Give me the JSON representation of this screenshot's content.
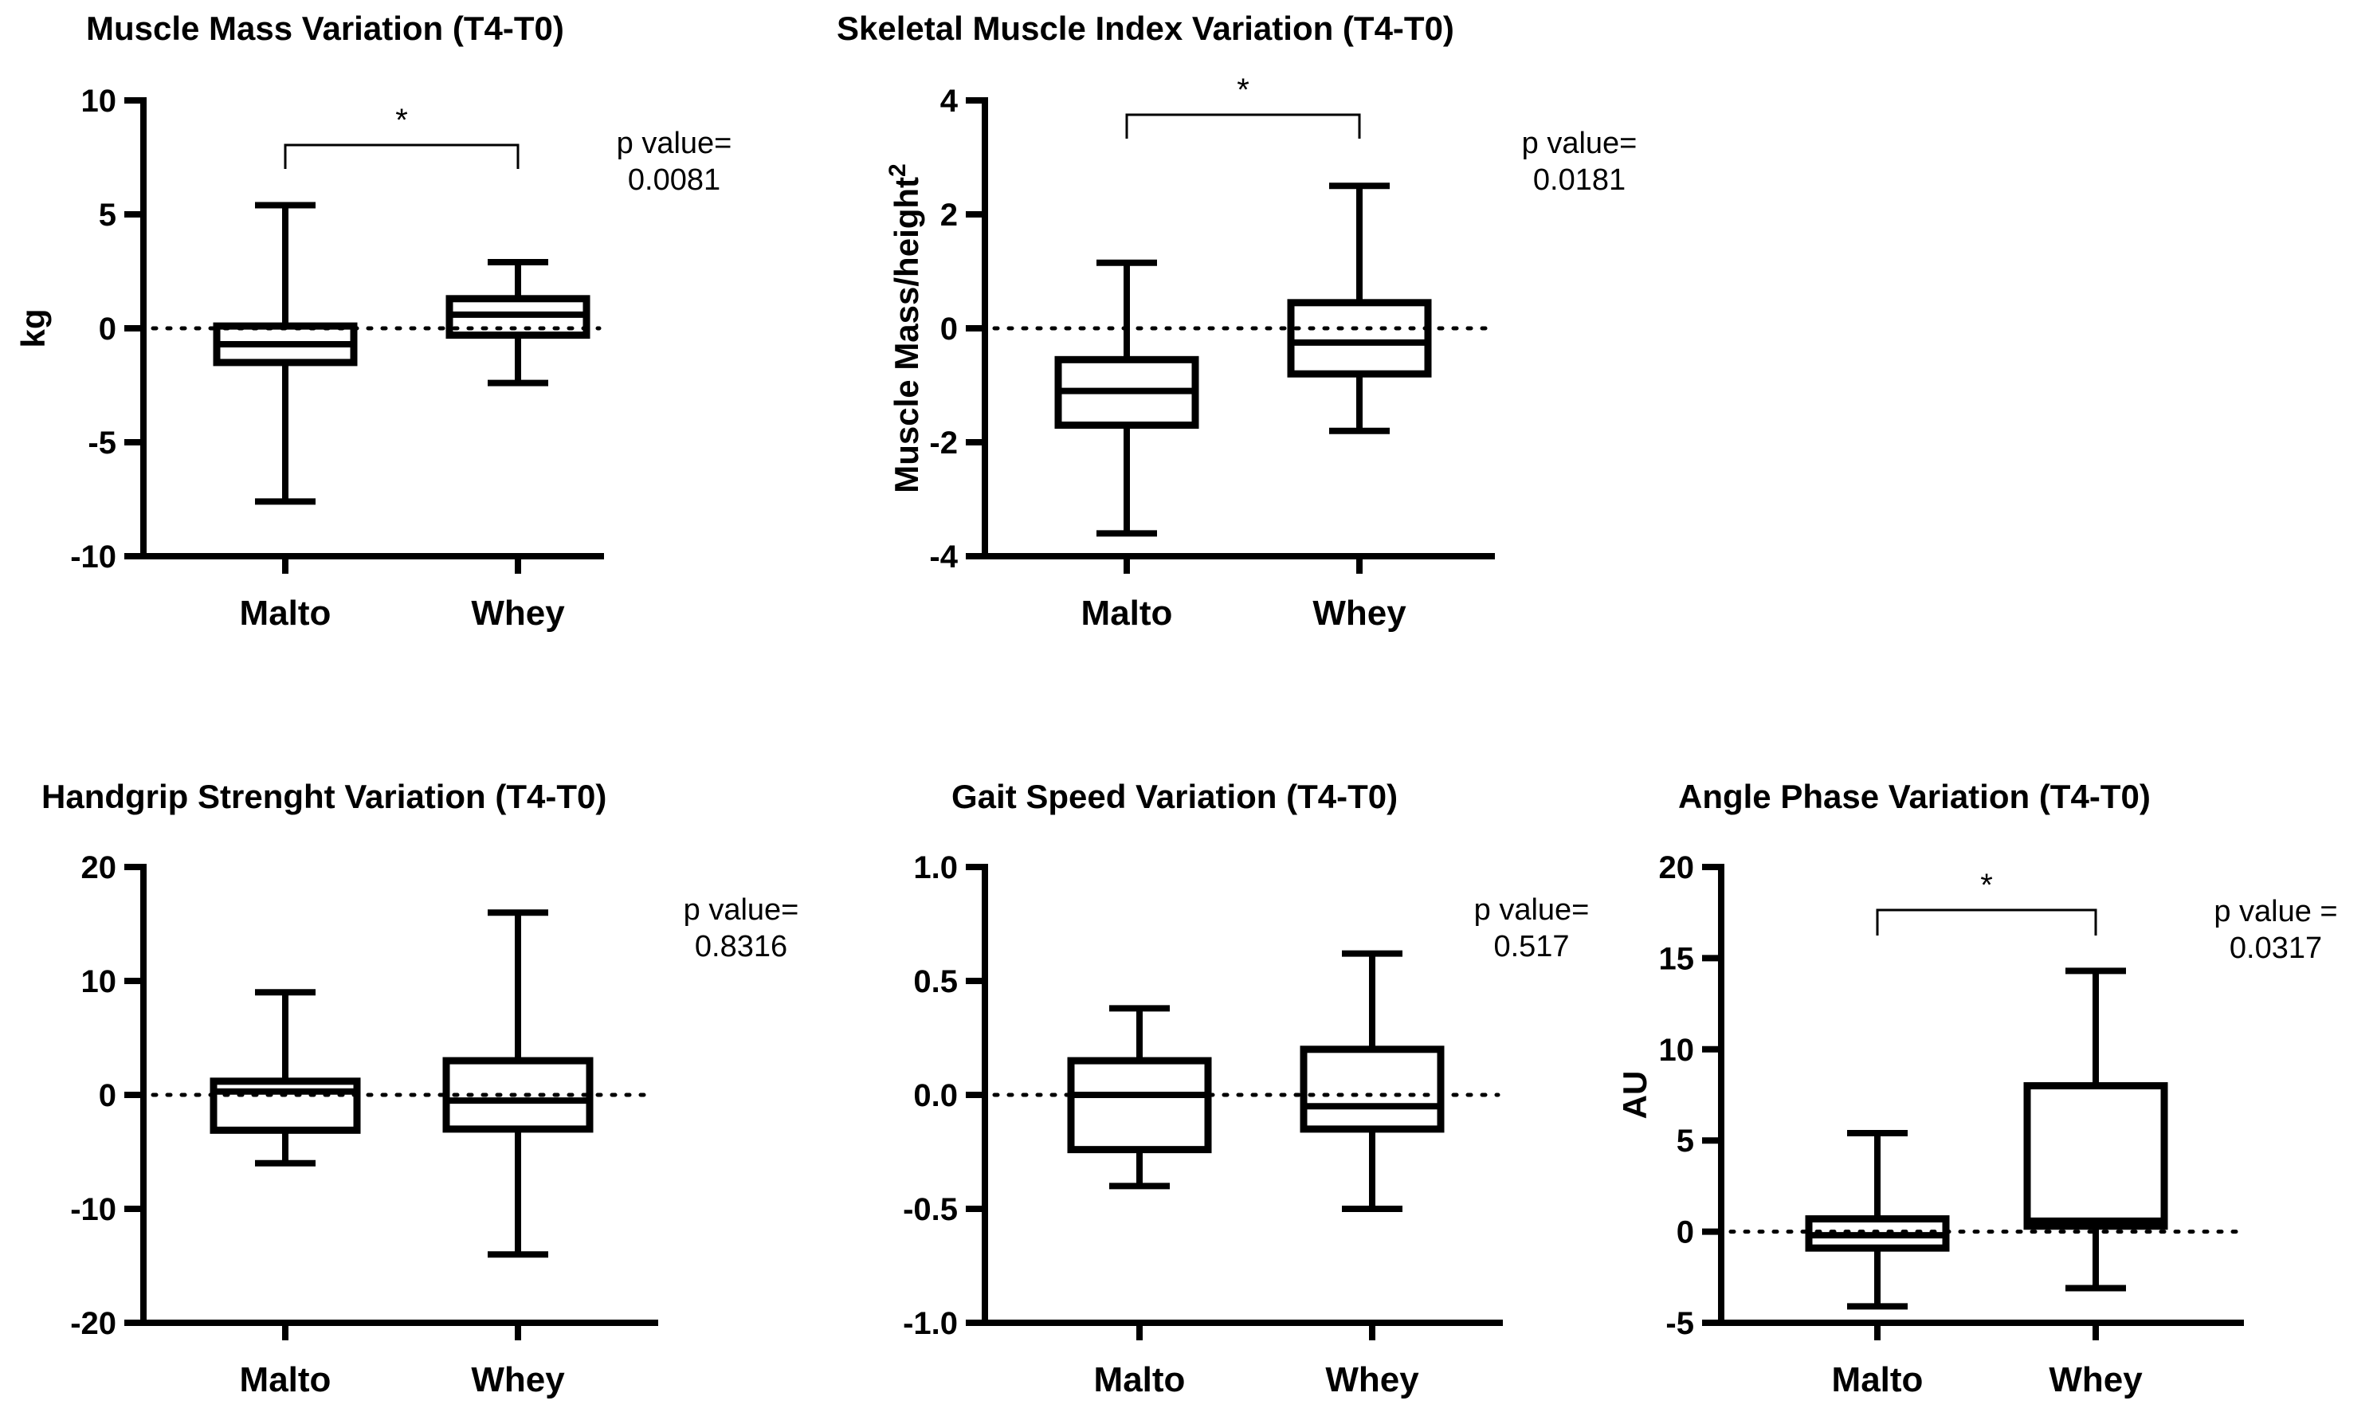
{
  "chart_data": [
    {
      "type": "box",
      "title": "Muscle Mass Variation (T4-T0)",
      "ylabel": "kg",
      "ylim": [
        -10,
        10
      ],
      "yticks": [
        10,
        5,
        0,
        -5,
        -10
      ],
      "ytick_labels": [
        "10",
        "5",
        "0",
        "-5",
        "-10"
      ],
      "reference_line": 0,
      "categories": [
        "Malto",
        "Whey"
      ],
      "boxes": [
        {
          "name": "Malto",
          "min": -7.6,
          "q1": -1.5,
          "median": -0.7,
          "q3": 0.1,
          "max": 5.4
        },
        {
          "name": "Whey",
          "min": -2.4,
          "q1": -0.3,
          "median": 0.6,
          "q3": 1.3,
          "max": 2.9
        }
      ],
      "significance": "*",
      "p_label": "p value=",
      "p_value": "0.0081"
    },
    {
      "type": "box",
      "title": "Skeletal Muscle Index Variation (T4-T0)",
      "ylabel": "Muscle Mass/height",
      "ylabel_sup": "2",
      "ylim": [
        -4,
        4
      ],
      "yticks": [
        4,
        2,
        0,
        -2,
        -4
      ],
      "ytick_labels": [
        "4",
        "2",
        "0",
        "-2",
        "-4"
      ],
      "reference_line": 0,
      "categories": [
        "Malto",
        "Whey"
      ],
      "boxes": [
        {
          "name": "Malto",
          "min": -3.6,
          "q1": -1.7,
          "median": -1.1,
          "q3": -0.55,
          "max": 1.15
        },
        {
          "name": "Whey",
          "min": -1.8,
          "q1": -0.8,
          "median": -0.25,
          "q3": 0.45,
          "max": 2.5
        }
      ],
      "significance": "*",
      "p_label": "p value=",
      "p_value": "0.0181"
    },
    {
      "type": "box",
      "title": "Handgrip Strenght Variation (T4-T0)",
      "ylabel": "",
      "ylim": [
        -20,
        20
      ],
      "yticks": [
        20,
        10,
        0,
        -10,
        -20
      ],
      "ytick_labels": [
        "20",
        "10",
        "0",
        "-10",
        "-20"
      ],
      "reference_line": 0,
      "categories": [
        "Malto",
        "Whey"
      ],
      "boxes": [
        {
          "name": "Malto",
          "min": -6,
          "q1": -3.1,
          "median": 0.3,
          "q3": 1.2,
          "max": 9
        },
        {
          "name": "Whey",
          "min": -14,
          "q1": -3,
          "median": -0.5,
          "q3": 3,
          "max": 16
        }
      ],
      "significance": "",
      "p_label": "p value=",
      "p_value": "0.8316"
    },
    {
      "type": "box",
      "title": "Gait Speed Variation (T4-T0)",
      "ylabel": "",
      "ylim": [
        -1.0,
        1.0
      ],
      "yticks": [
        1.0,
        0.5,
        0.0,
        -0.5,
        -1.0
      ],
      "ytick_labels": [
        "1.0",
        "0.5",
        "0.0",
        "-0.5",
        "-1.0"
      ],
      "reference_line": 0,
      "categories": [
        "Malto",
        "Whey"
      ],
      "boxes": [
        {
          "name": "Malto",
          "min": -0.4,
          "q1": -0.24,
          "median": 0.0,
          "q3": 0.15,
          "max": 0.38
        },
        {
          "name": "Whey",
          "min": -0.5,
          "q1": -0.15,
          "median": -0.05,
          "q3": 0.2,
          "max": 0.62
        }
      ],
      "significance": "",
      "p_label": "p value=",
      "p_value": "0.517"
    },
    {
      "type": "box",
      "title": "Angle Phase Variation (T4-T0)",
      "ylabel": "AU",
      "ylim": [
        -5,
        20
      ],
      "yticks": [
        20,
        15,
        10,
        5,
        0,
        -5
      ],
      "ytick_labels": [
        "20",
        "15",
        "10",
        "5",
        "0",
        "-5"
      ],
      "reference_line": 0,
      "categories": [
        "Malto",
        "Whey"
      ],
      "boxes": [
        {
          "name": "Malto",
          "min": -4.1,
          "q1": -0.9,
          "median": -0.2,
          "q3": 0.7,
          "max": 5.4
        },
        {
          "name": "Whey",
          "min": -3.1,
          "q1": 0.3,
          "median": 0.6,
          "q3": 8,
          "max": 14.3
        }
      ],
      "significance": "*",
      "p_label": "p value =",
      "p_value": "0.0317"
    }
  ]
}
